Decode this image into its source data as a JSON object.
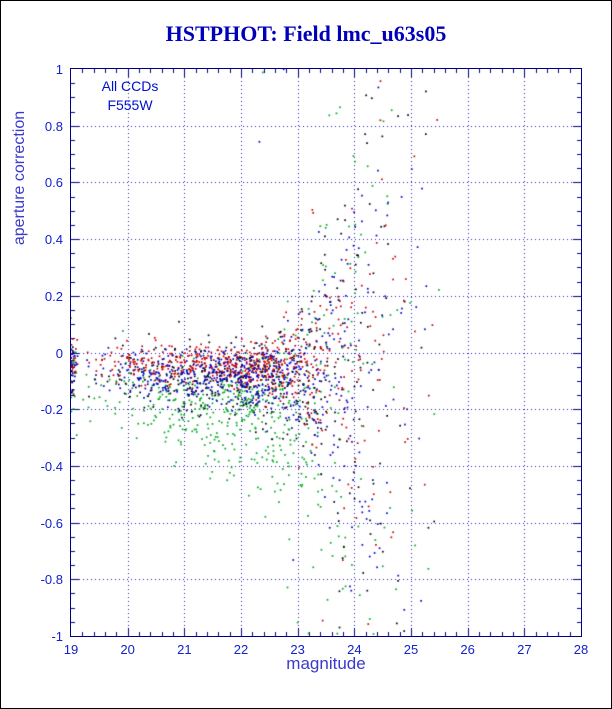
{
  "page": {
    "background": "#ffffff",
    "border_color": "#000000"
  },
  "chart_data": {
    "type": "scatter",
    "title": "HSTPHOT: Field lmc_u63s05",
    "title_color": "#0000bb",
    "xlabel": "magnitude",
    "ylabel": "aperture correction",
    "label_color": "#3a3acc",
    "tick_label_color": "#1122cc",
    "axis_color": "#000080",
    "grid_color": "#2222bb",
    "grid_style": "dotted",
    "annotation_color": "#0011cc",
    "annotations": [
      "All CCDs",
      "F555W"
    ],
    "xlim": [
      19,
      28
    ],
    "ylim": [
      -1,
      1
    ],
    "x_tick_values": [
      19,
      20,
      21,
      22,
      23,
      24,
      25,
      26,
      27,
      28
    ],
    "x_tick_labels": [
      "19",
      "20",
      "21",
      "22",
      "23",
      "24",
      "25",
      "26",
      "27",
      "28"
    ],
    "y_tick_values": [
      1,
      0.8,
      0.6,
      0.4,
      0.2,
      0,
      -0.2,
      -0.4,
      -0.6,
      -0.8,
      -1
    ],
    "y_tick_labels": [
      "1",
      "0.8",
      "0.6",
      "0.4",
      "0.2",
      "0",
      "-0.2",
      "-0.4",
      "-0.6",
      "-0.8",
      "-1"
    ],
    "point_size": 1.7,
    "seed": 20240613,
    "x_model": {
      "min": 19,
      "max": 25.6,
      "shape": "triangular",
      "edge_cluster_frac": 0.03
    },
    "flare": {
      "start": 21.8,
      "divisor": 1.1,
      "exponent": 3
    },
    "series": [
      {
        "name": "ccd-green",
        "color": "#00aa22",
        "n": 560,
        "y_center": -0.12,
        "y_sigma": 0.07,
        "skew": 0.1,
        "outlier_frac": 0.08
      },
      {
        "name": "ccd-black",
        "color": "#000011",
        "n": 500,
        "y_center": -0.07,
        "y_sigma": 0.055,
        "skew": 0.03,
        "outlier_frac": 0.07
      },
      {
        "name": "ccd-red",
        "color": "#cc0000",
        "n": 600,
        "y_center": -0.03,
        "y_sigma": 0.035,
        "skew": 0.02,
        "outlier_frac": 0.05
      },
      {
        "name": "ccd-blue",
        "color": "#0000cc",
        "n": 600,
        "y_center": -0.06,
        "y_sigma": 0.045,
        "skew": 0.03,
        "outlier_frac": 0.04
      }
    ]
  }
}
